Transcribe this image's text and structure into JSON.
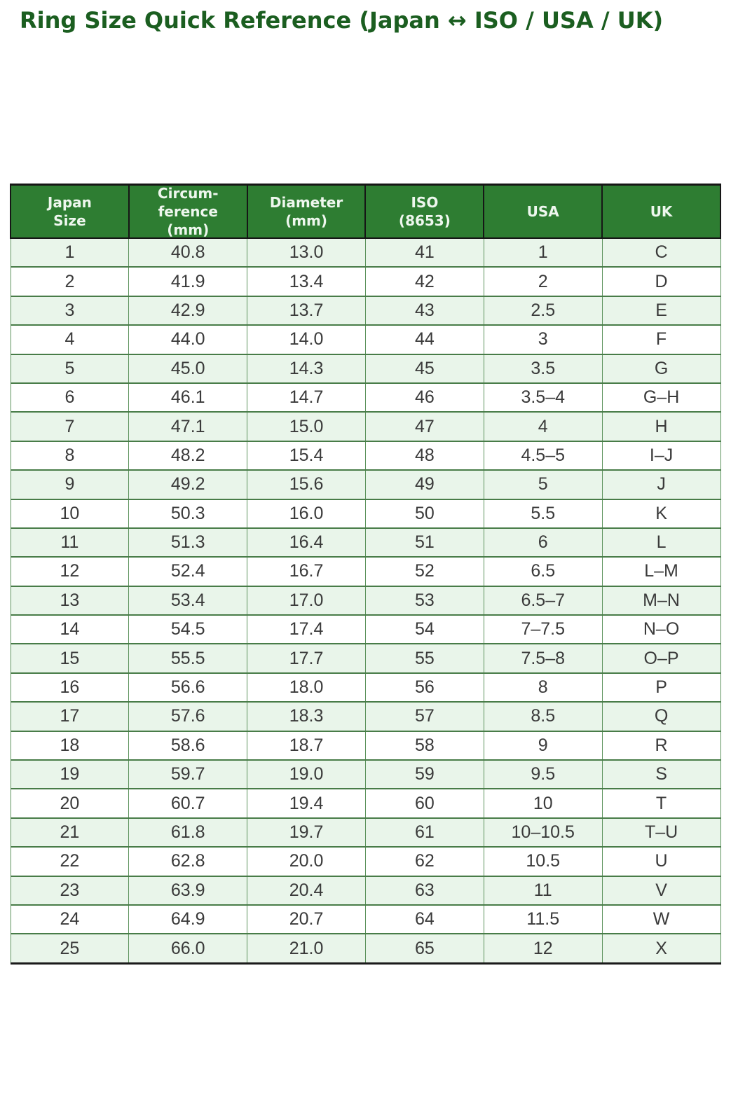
{
  "title": "Ring Size Quick Reference (Japan ↔ ISO / USA / UK)",
  "colors": {
    "title_green": "#1b5e20",
    "header_bg": "#2e7d32",
    "header_text": "#eef7ee",
    "header_outline": "#161616",
    "row_alt_bg": "#e9f5ea",
    "row_bg": "#ffffff",
    "cell_text": "#3a3a3a",
    "grid_green": "#487c48",
    "bottom_border": "#1a1a1a",
    "page_bg": "#ffffff"
  },
  "table": {
    "columns": [
      "Japan\nSize",
      "Circum-\nference\n(mm)",
      "Diameter\n(mm)",
      "ISO\n(8653)",
      "USA",
      "UK"
    ],
    "column_keys": [
      "japan-size",
      "circumference-mm",
      "diameter-mm",
      "iso-8653",
      "usa",
      "uk"
    ],
    "rows": [
      [
        "1",
        "40.8",
        "13.0",
        "41",
        "1",
        "C"
      ],
      [
        "2",
        "41.9",
        "13.4",
        "42",
        "2",
        "D"
      ],
      [
        "3",
        "42.9",
        "13.7",
        "43",
        "2.5",
        "E"
      ],
      [
        "4",
        "44.0",
        "14.0",
        "44",
        "3",
        "F"
      ],
      [
        "5",
        "45.0",
        "14.3",
        "45",
        "3.5",
        "G"
      ],
      [
        "6",
        "46.1",
        "14.7",
        "46",
        "3.5–4",
        "G–H"
      ],
      [
        "7",
        "47.1",
        "15.0",
        "47",
        "4",
        "H"
      ],
      [
        "8",
        "48.2",
        "15.4",
        "48",
        "4.5–5",
        "I–J"
      ],
      [
        "9",
        "49.2",
        "15.6",
        "49",
        "5",
        "J"
      ],
      [
        "10",
        "50.3",
        "16.0",
        "50",
        "5.5",
        "K"
      ],
      [
        "11",
        "51.3",
        "16.4",
        "51",
        "6",
        "L"
      ],
      [
        "12",
        "52.4",
        "16.7",
        "52",
        "6.5",
        "L–M"
      ],
      [
        "13",
        "53.4",
        "17.0",
        "53",
        "6.5–7",
        "M–N"
      ],
      [
        "14",
        "54.5",
        "17.4",
        "54",
        "7–7.5",
        "N–O"
      ],
      [
        "15",
        "55.5",
        "17.7",
        "55",
        "7.5–8",
        "O–P"
      ],
      [
        "16",
        "56.6",
        "18.0",
        "56",
        "8",
        "P"
      ],
      [
        "17",
        "57.6",
        "18.3",
        "57",
        "8.5",
        "Q"
      ],
      [
        "18",
        "58.6",
        "18.7",
        "58",
        "9",
        "R"
      ],
      [
        "19",
        "59.7",
        "19.0",
        "59",
        "9.5",
        "S"
      ],
      [
        "20",
        "60.7",
        "19.4",
        "60",
        "10",
        "T"
      ],
      [
        "21",
        "61.8",
        "19.7",
        "61",
        "10–10.5",
        "T–U"
      ],
      [
        "22",
        "62.8",
        "20.0",
        "62",
        "10.5",
        "U"
      ],
      [
        "23",
        "63.9",
        "20.4",
        "63",
        "11",
        "V"
      ],
      [
        "24",
        "64.9",
        "20.7",
        "64",
        "11.5",
        "W"
      ],
      [
        "25",
        "66.0",
        "21.0",
        "65",
        "12",
        "X"
      ]
    ]
  },
  "chart_data": {
    "type": "table",
    "title": "Ring Size Quick Reference (Japan ↔ ISO / USA / UK)",
    "columns": [
      "Japan Size",
      "Circumference (mm)",
      "Diameter (mm)",
      "ISO (8653)",
      "USA",
      "UK"
    ],
    "rows": [
      [
        "1",
        "40.8",
        "13.0",
        "41",
        "1",
        "C"
      ],
      [
        "2",
        "41.9",
        "13.4",
        "42",
        "2",
        "D"
      ],
      [
        "3",
        "42.9",
        "13.7",
        "43",
        "2.5",
        "E"
      ],
      [
        "4",
        "44.0",
        "14.0",
        "44",
        "3",
        "F"
      ],
      [
        "5",
        "45.0",
        "14.3",
        "45",
        "3.5",
        "G"
      ],
      [
        "6",
        "46.1",
        "14.7",
        "46",
        "3.5–4",
        "G–H"
      ],
      [
        "7",
        "47.1",
        "15.0",
        "47",
        "4",
        "H"
      ],
      [
        "8",
        "48.2",
        "15.4",
        "48",
        "4.5–5",
        "I–J"
      ],
      [
        "9",
        "49.2",
        "15.6",
        "49",
        "5",
        "J"
      ],
      [
        "10",
        "50.3",
        "16.0",
        "50",
        "5.5",
        "K"
      ],
      [
        "11",
        "51.3",
        "16.4",
        "51",
        "6",
        "L"
      ],
      [
        "12",
        "52.4",
        "16.7",
        "52",
        "6.5",
        "L–M"
      ],
      [
        "13",
        "53.4",
        "17.0",
        "53",
        "6.5–7",
        "M–N"
      ],
      [
        "14",
        "54.5",
        "17.4",
        "54",
        "7–7.5",
        "N–O"
      ],
      [
        "15",
        "55.5",
        "17.7",
        "55",
        "7.5–8",
        "O–P"
      ],
      [
        "16",
        "56.6",
        "18.0",
        "56",
        "8",
        "P"
      ],
      [
        "17",
        "57.6",
        "18.3",
        "57",
        "8.5",
        "Q"
      ],
      [
        "18",
        "58.6",
        "18.7",
        "58",
        "9",
        "R"
      ],
      [
        "19",
        "59.7",
        "19.0",
        "59",
        "9.5",
        "S"
      ],
      [
        "20",
        "60.7",
        "19.4",
        "60",
        "10",
        "T"
      ],
      [
        "21",
        "61.8",
        "19.7",
        "61",
        "10–10.5",
        "T–U"
      ],
      [
        "22",
        "62.8",
        "20.0",
        "62",
        "10.5",
        "U"
      ],
      [
        "23",
        "63.9",
        "20.4",
        "63",
        "11",
        "V"
      ],
      [
        "24",
        "64.9",
        "20.7",
        "64",
        "11.5",
        "W"
      ],
      [
        "25",
        "66.0",
        "21.0",
        "65",
        "12",
        "X"
      ]
    ],
    "layout": {
      "grid": true,
      "alternating_row_shading": true,
      "legend": "none"
    }
  }
}
